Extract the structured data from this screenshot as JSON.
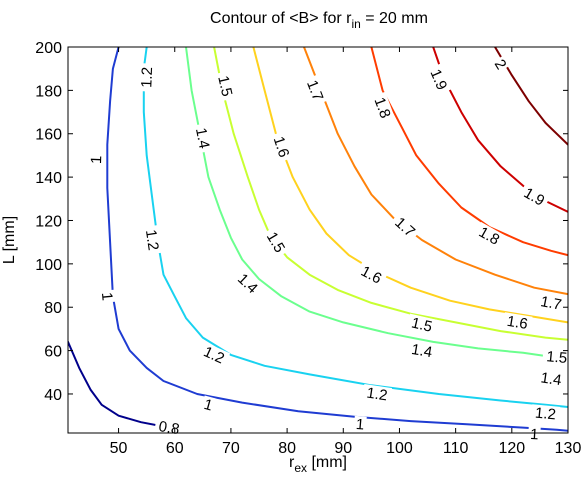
{
  "chart_data": {
    "type": "contour",
    "title": {
      "main": "Contour of <B> for r",
      "sub": "in",
      "tail": " = 20 mm"
    },
    "xlabel": {
      "main": "r",
      "sub": "ex",
      "tail": " [mm]"
    },
    "ylabel": "L [mm]",
    "xlim": [
      41,
      130
    ],
    "ylim": [
      22,
      200
    ],
    "xticks": [
      "50",
      "60",
      "70",
      "80",
      "90",
      "100",
      "110",
      "120",
      "130"
    ],
    "yticks": [
      "40",
      "60",
      "80",
      "100",
      "120",
      "140",
      "160",
      "180",
      "200"
    ],
    "grid": false,
    "colormap": "jet",
    "levels": [
      {
        "value": "0.8",
        "color": "#00008b",
        "points": [
          [
            41,
            64
          ],
          [
            43,
            52
          ],
          [
            45,
            42
          ],
          [
            47,
            35
          ],
          [
            50,
            30
          ],
          [
            54,
            27
          ],
          [
            58,
            25
          ],
          [
            61,
            24
          ]
        ],
        "labels": [
          {
            "x": 59,
            "y": 24.5,
            "text": "0.8"
          }
        ]
      },
      {
        "value": "1",
        "color": "#1f3cd2",
        "points": [
          [
            50,
            200
          ],
          [
            49,
            190
          ],
          [
            48.5,
            175
          ],
          [
            48,
            155
          ],
          [
            48,
            135
          ],
          [
            48.5,
            110
          ],
          [
            49,
            85
          ],
          [
            50,
            70
          ],
          [
            52,
            60
          ],
          [
            55,
            52
          ],
          [
            58,
            46
          ],
          [
            64,
            40
          ],
          [
            72,
            36
          ],
          [
            82,
            32
          ],
          [
            92,
            29.5
          ],
          [
            102,
            27.5
          ],
          [
            112,
            26
          ],
          [
            122,
            24.5
          ],
          [
            128,
            23.5
          ],
          [
            130,
            23
          ]
        ],
        "labels": [
          {
            "x": 46,
            "y": 148,
            "text": "1"
          },
          {
            "x": 48,
            "y": 85,
            "text": "1"
          },
          {
            "x": 66,
            "y": 35,
            "text": "1"
          },
          {
            "x": 93,
            "y": 26,
            "text": "1"
          },
          {
            "x": 124,
            "y": 21.5,
            "text": "1"
          }
        ]
      },
      {
        "value": "1.2",
        "color": "#19d2f0",
        "points": [
          [
            55,
            200
          ],
          [
            54.5,
            190
          ],
          [
            54.5,
            170
          ],
          [
            55,
            150
          ],
          [
            56,
            130
          ],
          [
            57,
            110
          ],
          [
            58,
            95
          ],
          [
            60,
            85
          ],
          [
            62,
            75
          ],
          [
            65,
            66
          ],
          [
            70,
            58
          ],
          [
            76,
            53
          ],
          [
            84,
            49
          ],
          [
            95,
            44
          ],
          [
            107,
            40
          ],
          [
            118,
            37
          ],
          [
            126,
            35
          ],
          [
            130,
            34
          ]
        ],
        "labels": [
          {
            "x": 55,
            "y": 186,
            "text": "1.2"
          },
          {
            "x": 56,
            "y": 111,
            "text": "1.2"
          },
          {
            "x": 67,
            "y": 58,
            "text": "1.2"
          },
          {
            "x": 96,
            "y": 40,
            "text": "1.2"
          },
          {
            "x": 126,
            "y": 31,
            "text": "1.2"
          }
        ]
      },
      {
        "value": "1.4",
        "color": "#6bff8e",
        "points": [
          [
            62,
            200
          ],
          [
            63,
            180
          ],
          [
            64.5,
            160
          ],
          [
            66,
            140
          ],
          [
            68,
            125
          ],
          [
            70,
            112
          ],
          [
            72,
            102
          ],
          [
            75,
            93
          ],
          [
            79,
            85
          ],
          [
            84,
            78
          ],
          [
            90,
            73
          ],
          [
            98,
            68
          ],
          [
            106,
            64
          ],
          [
            114,
            61
          ],
          [
            122,
            59
          ],
          [
            130,
            56
          ]
        ],
        "labels": [
          {
            "x": 65,
            "y": 158,
            "text": "1.4"
          },
          {
            "x": 73,
            "y": 91,
            "text": "1.4"
          },
          {
            "x": 104,
            "y": 60,
            "text": "1.4"
          },
          {
            "x": 127,
            "y": 47,
            "text": "1.4"
          }
        ]
      },
      {
        "value": "1.5",
        "color": "#c8ff32",
        "points": [
          [
            67,
            200
          ],
          [
            68.5,
            180
          ],
          [
            70.5,
            160
          ],
          [
            73,
            140
          ],
          [
            75,
            125
          ],
          [
            77,
            113
          ],
          [
            80,
            103
          ],
          [
            84,
            95
          ],
          [
            89,
            88
          ],
          [
            95,
            82
          ],
          [
            102,
            77
          ],
          [
            110,
            73
          ],
          [
            118,
            69
          ],
          [
            126,
            66
          ],
          [
            130,
            65
          ]
        ],
        "labels": [
          {
            "x": 69,
            "y": 182,
            "text": "1.5"
          },
          {
            "x": 78,
            "y": 110,
            "text": "1.5"
          },
          {
            "x": 104,
            "y": 72,
            "text": "1.5"
          },
          {
            "x": 128,
            "y": 57,
            "text": "1.5"
          }
        ]
      },
      {
        "value": "1.6",
        "color": "#ffd21e",
        "points": [
          [
            74,
            200
          ],
          [
            76,
            180
          ],
          [
            78,
            160
          ],
          [
            81,
            140
          ],
          [
            84,
            125
          ],
          [
            87,
            114
          ],
          [
            91,
            104
          ],
          [
            96,
            96
          ],
          [
            102,
            89
          ],
          [
            109,
            83
          ],
          [
            116,
            79
          ],
          [
            123,
            76
          ],
          [
            130,
            73
          ]
        ],
        "labels": [
          {
            "x": 79,
            "y": 154,
            "text": "1.6"
          },
          {
            "x": 95,
            "y": 95,
            "text": "1.6"
          },
          {
            "x": 121,
            "y": 73,
            "text": "1.6"
          }
        ]
      },
      {
        "value": "1.7",
        "color": "#ff820a",
        "points": [
          [
            83,
            200
          ],
          [
            86,
            180
          ],
          [
            89,
            160
          ],
          [
            92,
            145
          ],
          [
            95,
            132
          ],
          [
            99,
            121
          ],
          [
            104,
            111
          ],
          [
            110,
            102
          ],
          [
            117,
            95
          ],
          [
            124,
            89
          ],
          [
            130,
            86
          ]
        ],
        "labels": [
          {
            "x": 85,
            "y": 180,
            "text": "1.7"
          },
          {
            "x": 101,
            "y": 117,
            "text": "1.7"
          },
          {
            "x": 127,
            "y": 82,
            "text": "1.7"
          }
        ]
      },
      {
        "value": "1.8",
        "color": "#ff3c00",
        "points": [
          [
            95,
            200
          ],
          [
            97,
            180
          ],
          [
            100,
            165
          ],
          [
            103,
            150
          ],
          [
            107,
            137
          ],
          [
            111,
            126
          ],
          [
            116,
            117
          ],
          [
            122,
            110
          ],
          [
            127,
            106
          ],
          [
            130,
            104
          ]
        ],
        "labels": [
          {
            "x": 97,
            "y": 172,
            "text": "1.8"
          },
          {
            "x": 116,
            "y": 113,
            "text": "1.8"
          }
        ]
      },
      {
        "value": "1.9",
        "color": "#cd0000",
        "points": [
          [
            106,
            200
          ],
          [
            108,
            185
          ],
          [
            111,
            170
          ],
          [
            114,
            157
          ],
          [
            118,
            145
          ],
          [
            122,
            136
          ],
          [
            126,
            129
          ],
          [
            130,
            124
          ]
        ],
        "labels": [
          {
            "x": 107,
            "y": 185,
            "text": "1.9"
          },
          {
            "x": 124,
            "y": 131,
            "text": "1.9"
          }
        ]
      },
      {
        "value": "2",
        "color": "#7d0000",
        "points": [
          [
            117,
            200
          ],
          [
            120,
            187
          ],
          [
            123,
            175
          ],
          [
            126,
            165
          ],
          [
            130,
            155
          ]
        ],
        "labels": [
          {
            "x": 118,
            "y": 192,
            "text": "2"
          }
        ]
      }
    ]
  }
}
